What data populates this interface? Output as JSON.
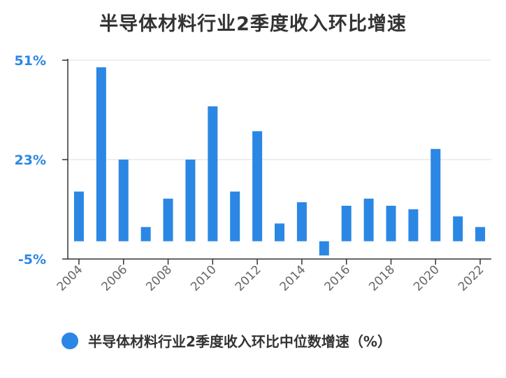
{
  "chart_data": {
    "type": "bar",
    "title": "半导体材料行业2季度收入环比增速",
    "categories": [
      "2004",
      "2005",
      "2006",
      "2007",
      "2008",
      "2009",
      "2010",
      "2011",
      "2012",
      "2013",
      "2014",
      "2015",
      "2016",
      "2017",
      "2018",
      "2019",
      "2020",
      "2021",
      "2022"
    ],
    "x_tick_labels": [
      "2004",
      "2006",
      "2008",
      "2010",
      "2012",
      "2014",
      "2016",
      "2018",
      "2020",
      "2022"
    ],
    "series": [
      {
        "name": "半导体材料行业2季度收入环比中位数增速（%）",
        "values": [
          14,
          49,
          23,
          4,
          12,
          23,
          38,
          14,
          31,
          5,
          11,
          -4,
          10,
          12,
          10,
          9,
          26,
          7,
          4
        ]
      }
    ],
    "yticks": [
      "51%",
      "23%",
      "-5%"
    ],
    "ytick_values": [
      51,
      23,
      -5
    ],
    "ylim": [
      -5,
      51
    ],
    "grid": true,
    "legend_position": "bottom-left",
    "color": "#2b87e3"
  }
}
